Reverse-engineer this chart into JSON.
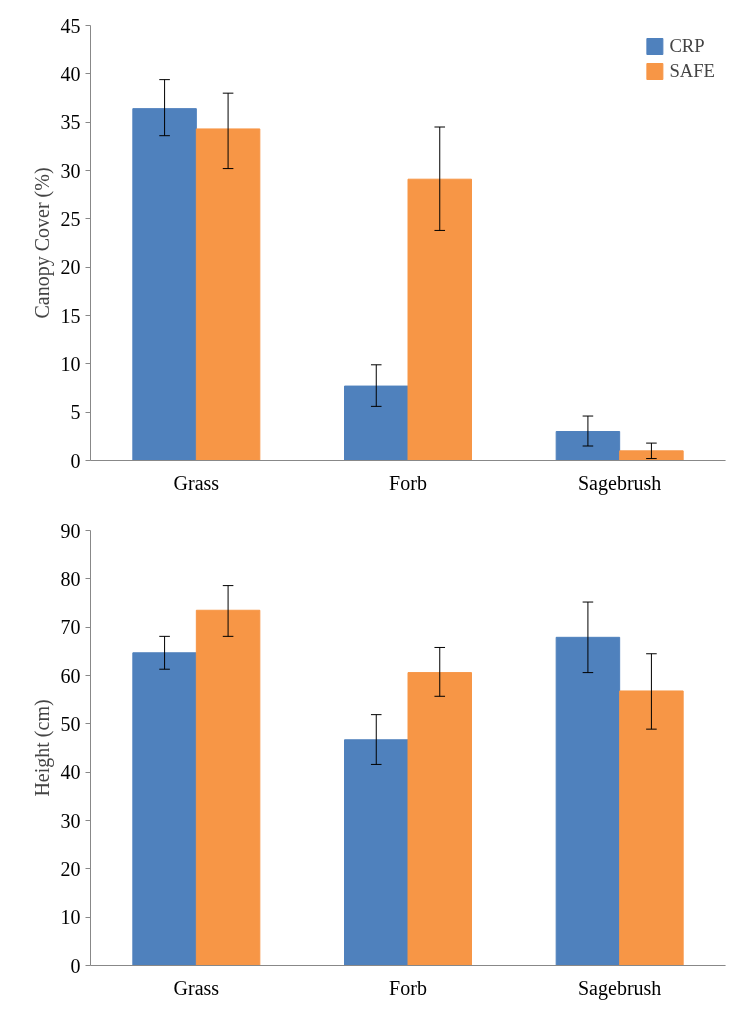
{
  "chart_data": [
    {
      "type": "bar",
      "ylabel": "Canopy Cover (%)",
      "categories": [
        "Grass",
        "Forb",
        "Sagebrush"
      ],
      "ylim": [
        0,
        45
      ],
      "yticks": [
        0,
        5,
        10,
        15,
        20,
        25,
        30,
        35,
        40,
        45
      ],
      "legend": "top right",
      "grid": false,
      "series": [
        {
          "name": "CRP",
          "color": "#4f81bd",
          "values": [
            36.4,
            7.7,
            3.0
          ],
          "errors": [
            [
              33.6,
              39.4
            ],
            [
              5.6,
              9.9
            ],
            [
              1.5,
              4.6
            ]
          ]
        },
        {
          "name": "SAFE",
          "color": "#f79646",
          "values": [
            34.3,
            29.1,
            1.0
          ],
          "errors": [
            [
              30.2,
              38.0
            ],
            [
              23.8,
              34.5
            ],
            [
              0.2,
              1.8
            ]
          ]
        }
      ]
    },
    {
      "type": "bar",
      "ylabel": "Height (cm)",
      "categories": [
        "Grass",
        "Forb",
        "Sagebrush"
      ],
      "ylim": [
        0,
        90
      ],
      "yticks": [
        0,
        10,
        20,
        30,
        40,
        50,
        60,
        70,
        80,
        90
      ],
      "legend": false,
      "grid": false,
      "series": [
        {
          "color": "#4f81bd",
          "values": [
            64.7,
            46.7,
            67.9
          ],
          "errors": [
            [
              61.3,
              68.1
            ],
            [
              41.6,
              51.9
            ],
            [
              60.6,
              75.2
            ]
          ]
        },
        {
          "color": "#f79646",
          "values": [
            73.5,
            60.6,
            56.8
          ],
          "errors": [
            [
              68.1,
              78.6
            ],
            [
              55.7,
              65.8
            ],
            [
              48.9,
              64.5
            ]
          ]
        }
      ]
    }
  ]
}
